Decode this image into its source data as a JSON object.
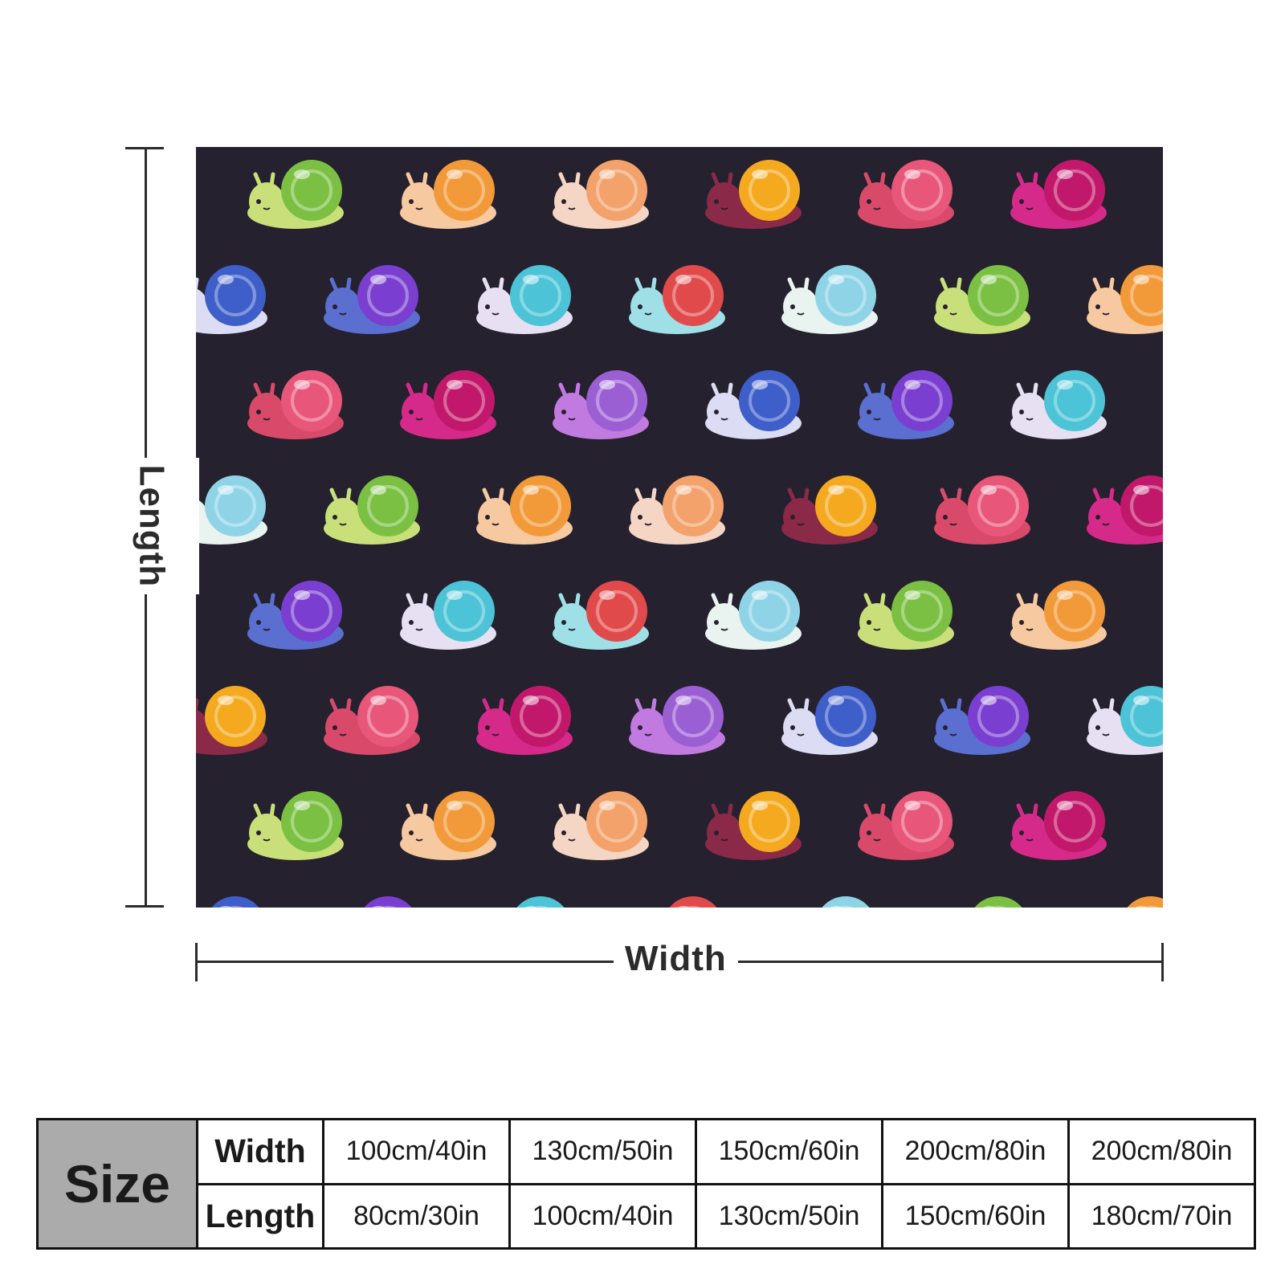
{
  "dimensions": {
    "length_label": "Length",
    "width_label": "Width"
  },
  "artwork": {
    "subject": "Snails with gem shells pattern",
    "background_color": "#25212e",
    "palette": [
      "#8fd4e6",
      "#7bc043",
      "#f29a3a",
      "#f3a26b",
      "#f4a91f",
      "#e8567a",
      "#c2186b",
      "#9b5fd4",
      "#3e5ec9",
      "#7a3fd0",
      "#4cc3d6",
      "#e04a4a"
    ]
  },
  "size_table": {
    "header": "Size",
    "rows": [
      {
        "label": "Width",
        "values": [
          "100cm/40in",
          "130cm/50in",
          "150cm/60in",
          "200cm/80in",
          "200cm/80in"
        ]
      },
      {
        "label": "Length",
        "values": [
          "80cm/30in",
          "100cm/40in",
          "130cm/50in",
          "150cm/60in",
          "180cm/70in"
        ]
      }
    ]
  }
}
